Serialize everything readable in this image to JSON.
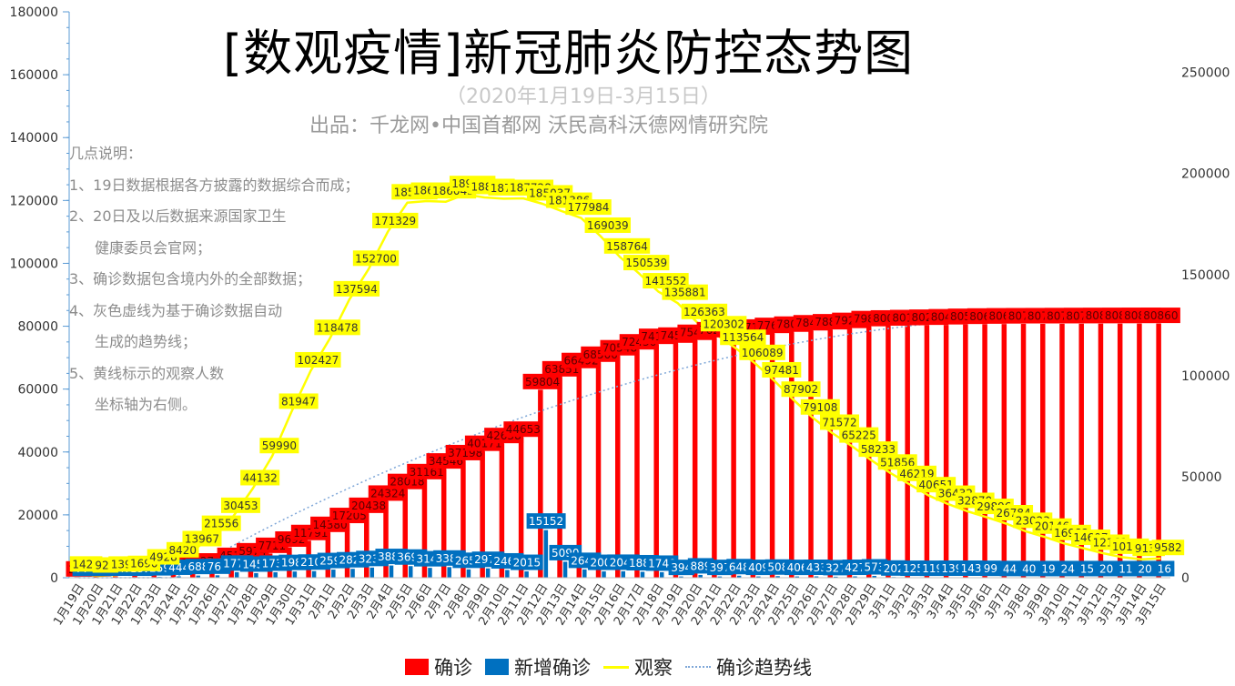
{
  "header": {
    "title": "[数观疫情]新冠肺炎防控态势图",
    "subtitle": "（2020年1月19日-3月15日）",
    "producer": "出品：千龙网•中国首都网   沃民高科沃德网情研究院"
  },
  "notes": [
    "几点说明：",
    "1、19日数据根据各方披露的数据综合而成；",
    "2、20日及以后数据来源国家卫生",
    "健康委员会官网；",
    "3、确诊数据包含境内外的全部数据；",
    "4、灰色虚线为基于确诊数据自动",
    "生成的趋势线；",
    "5、黄线标示的观察人数",
    "坐标轴为右侧。"
  ],
  "legend": {
    "confirmed": "确诊",
    "new_confirmed": "新增确诊",
    "observation": "观察",
    "trend": "确诊趋势线"
  },
  "colors": {
    "confirmed": "#ff0000",
    "new_confirmed": "#0070c0",
    "observation": "#ffff00",
    "trend": "#7fa7d8"
  },
  "chart_data": {
    "type": "bar",
    "categories": [
      "1月19日",
      "1月20日",
      "1月21日",
      "1月22日",
      "1月23日",
      "1月24日",
      "1月25日",
      "1月26日",
      "1月27日",
      "1月28日",
      "1月29日",
      "1月30日",
      "1月31日",
      "2月1日",
      "2月2日",
      "2月3日",
      "2月4日",
      "2月5日",
      "2月6日",
      "2月7日",
      "2月8日",
      "2月9日",
      "2月10日",
      "2月11日",
      "2月12日",
      "2月13日",
      "2月14日",
      "2月15日",
      "2月16日",
      "2月17日",
      "2月18日",
      "2月19日",
      "2月20日",
      "2月21日",
      "2月22日",
      "2月23日",
      "2月24日",
      "2月25日",
      "2月26日",
      "2月27日",
      "2月28日",
      "2月29日",
      "3月1日",
      "3月2日",
      "3月3日",
      "3月4日",
      "3月5日",
      "3月6日",
      "3月7日",
      "3月8日",
      "3月9日",
      "3月10日",
      "3月11日",
      "3月12日",
      "3月13日",
      "3月14日",
      "3月15日"
    ],
    "series": [
      {
        "name": "确诊",
        "axis": "left",
        "values": [
          201,
          291,
          440,
          571,
          830,
          1287,
          1975,
          2744,
          4515,
          5974,
          7711,
          9692,
          11791,
          14380,
          17205,
          20438,
          24324,
          28018,
          31161,
          34546,
          37198,
          40171,
          42638,
          44653,
          59804,
          63851,
          66492,
          68500,
          70548,
          72436,
          74185,
          74576,
          75465,
          76288,
          76936,
          77150,
          77658,
          78064,
          78497,
          78824,
          79251,
          79824,
          80026,
          80151,
          80270,
          80409,
          80552,
          80651,
          80695,
          80735,
          80754,
          80778,
          80793,
          80813,
          80824,
          80844,
          80860
        ]
      },
      {
        "name": "新增确诊",
        "axis": "left",
        "values": [
          77,
          93,
          149,
          131,
          259,
          444,
          688,
          769,
          1771,
          1459,
          1737,
          1982,
          2102,
          2590,
          2829,
          3235,
          3887,
          3694,
          3143,
          3385,
          2652,
          2973,
          2467,
          2015,
          15152,
          5090,
          2641,
          2009,
          2048,
          1886,
          1749,
          394,
          889,
          397,
          648,
          409,
          508,
          406,
          433,
          327,
          427,
          573,
          202,
          125,
          119,
          139,
          143,
          99,
          44,
          40,
          19,
          24,
          15,
          20,
          11,
          20,
          16
        ]
      },
      {
        "name": "观察",
        "axis": "right",
        "values": [
          1420,
          922,
          1394,
          1690,
          4928,
          8420,
          13967,
          21556,
          30453,
          44132,
          59990,
          81947,
          102427,
          118478,
          137594,
          152700,
          171329,
          185555,
          186354,
          186045,
          189660,
          188183,
          187518,
          187728,
          185037,
          181386,
          177984,
          169039,
          158764,
          150539,
          141552,
          135881,
          126363,
          120302,
          113564,
          106089,
          97481,
          87902,
          79108,
          71572,
          65225,
          58233,
          51856,
          46219,
          40651,
          36432,
          32870,
          29896,
          26784,
          23023,
          20146,
          16982,
          14607,
          12161,
          10189,
          9136,
          9582
        ]
      }
    ],
    "xlabel": "",
    "ylabel": "",
    "ylim": [
      0,
      180000
    ],
    "yticks": [
      0,
      20000,
      40000,
      60000,
      80000,
      100000,
      120000,
      140000,
      160000,
      180000
    ],
    "ylim_right": [
      0,
      280000
    ],
    "yticks_right": [
      0,
      50000,
      100000,
      150000,
      200000,
      250000
    ],
    "trendline": "polynomial fit of confirmed (dotted)",
    "grid": false,
    "legend_position": "bottom"
  }
}
